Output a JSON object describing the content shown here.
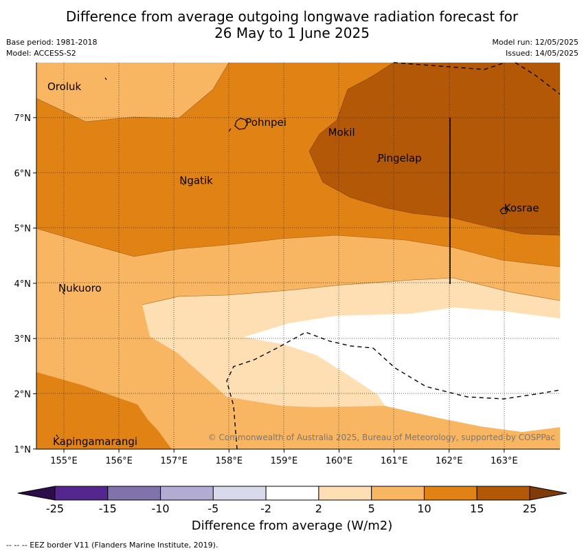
{
  "title_line1": "Difference from average outgoing longwave radiation forecast for",
  "title_line2": "26 May to 1 June 2025",
  "base_period": "Base period: 1981-2018",
  "model": "Model: ACCESS-S2",
  "model_run": "Model run: 12/05/2025",
  "issued": "Issued: 14/05/2025",
  "copyright": "© Commonwealth of Australia 2025, Bureau of Meteorology, supported by COSPPac",
  "footnote": "--  --  -- EEZ border V11 (Flanders Marine Institute, 2019).",
  "colorbar": {
    "title": "Difference from average (W/m2)",
    "labels": [
      "-25",
      "-15",
      "-10",
      "-5",
      "-2",
      "2",
      "5",
      "10",
      "15",
      "25"
    ],
    "colors": [
      "#2d0c4a",
      "#54278f",
      "#8073ac",
      "#b2abd2",
      "#d8daeb",
      "#ffffff",
      "#fddfb3",
      "#f9b662",
      "#e08214",
      "#b35806",
      "#7f3b08"
    ]
  },
  "x_ticks": [
    "155°E",
    "156°E",
    "157°E",
    "158°E",
    "159°E",
    "160°E",
    "161°E",
    "162°E",
    "163°E"
  ],
  "y_ticks": [
    "7°N",
    "6°N",
    "5°N",
    "4°N",
    "3°N",
    "2°N",
    "1°N"
  ],
  "places": [
    {
      "name": "Oroluk",
      "lon": 154.7,
      "lat": 7.5
    },
    {
      "name": "Pohnpei",
      "lon": 158.3,
      "lat": 6.85
    },
    {
      "name": "Mokil",
      "lon": 159.8,
      "lat": 6.67
    },
    {
      "name": "Pingelap",
      "lon": 160.7,
      "lat": 6.2
    },
    {
      "name": "Ngatik",
      "lon": 157.1,
      "lat": 5.8
    },
    {
      "name": "Kosrae",
      "lon": 163.0,
      "lat": 5.3
    },
    {
      "name": "Nukuoro",
      "lon": 154.9,
      "lat": 3.85
    },
    {
      "name": "Kapingamarangi",
      "lon": 154.8,
      "lat": 1.07
    }
  ]
}
